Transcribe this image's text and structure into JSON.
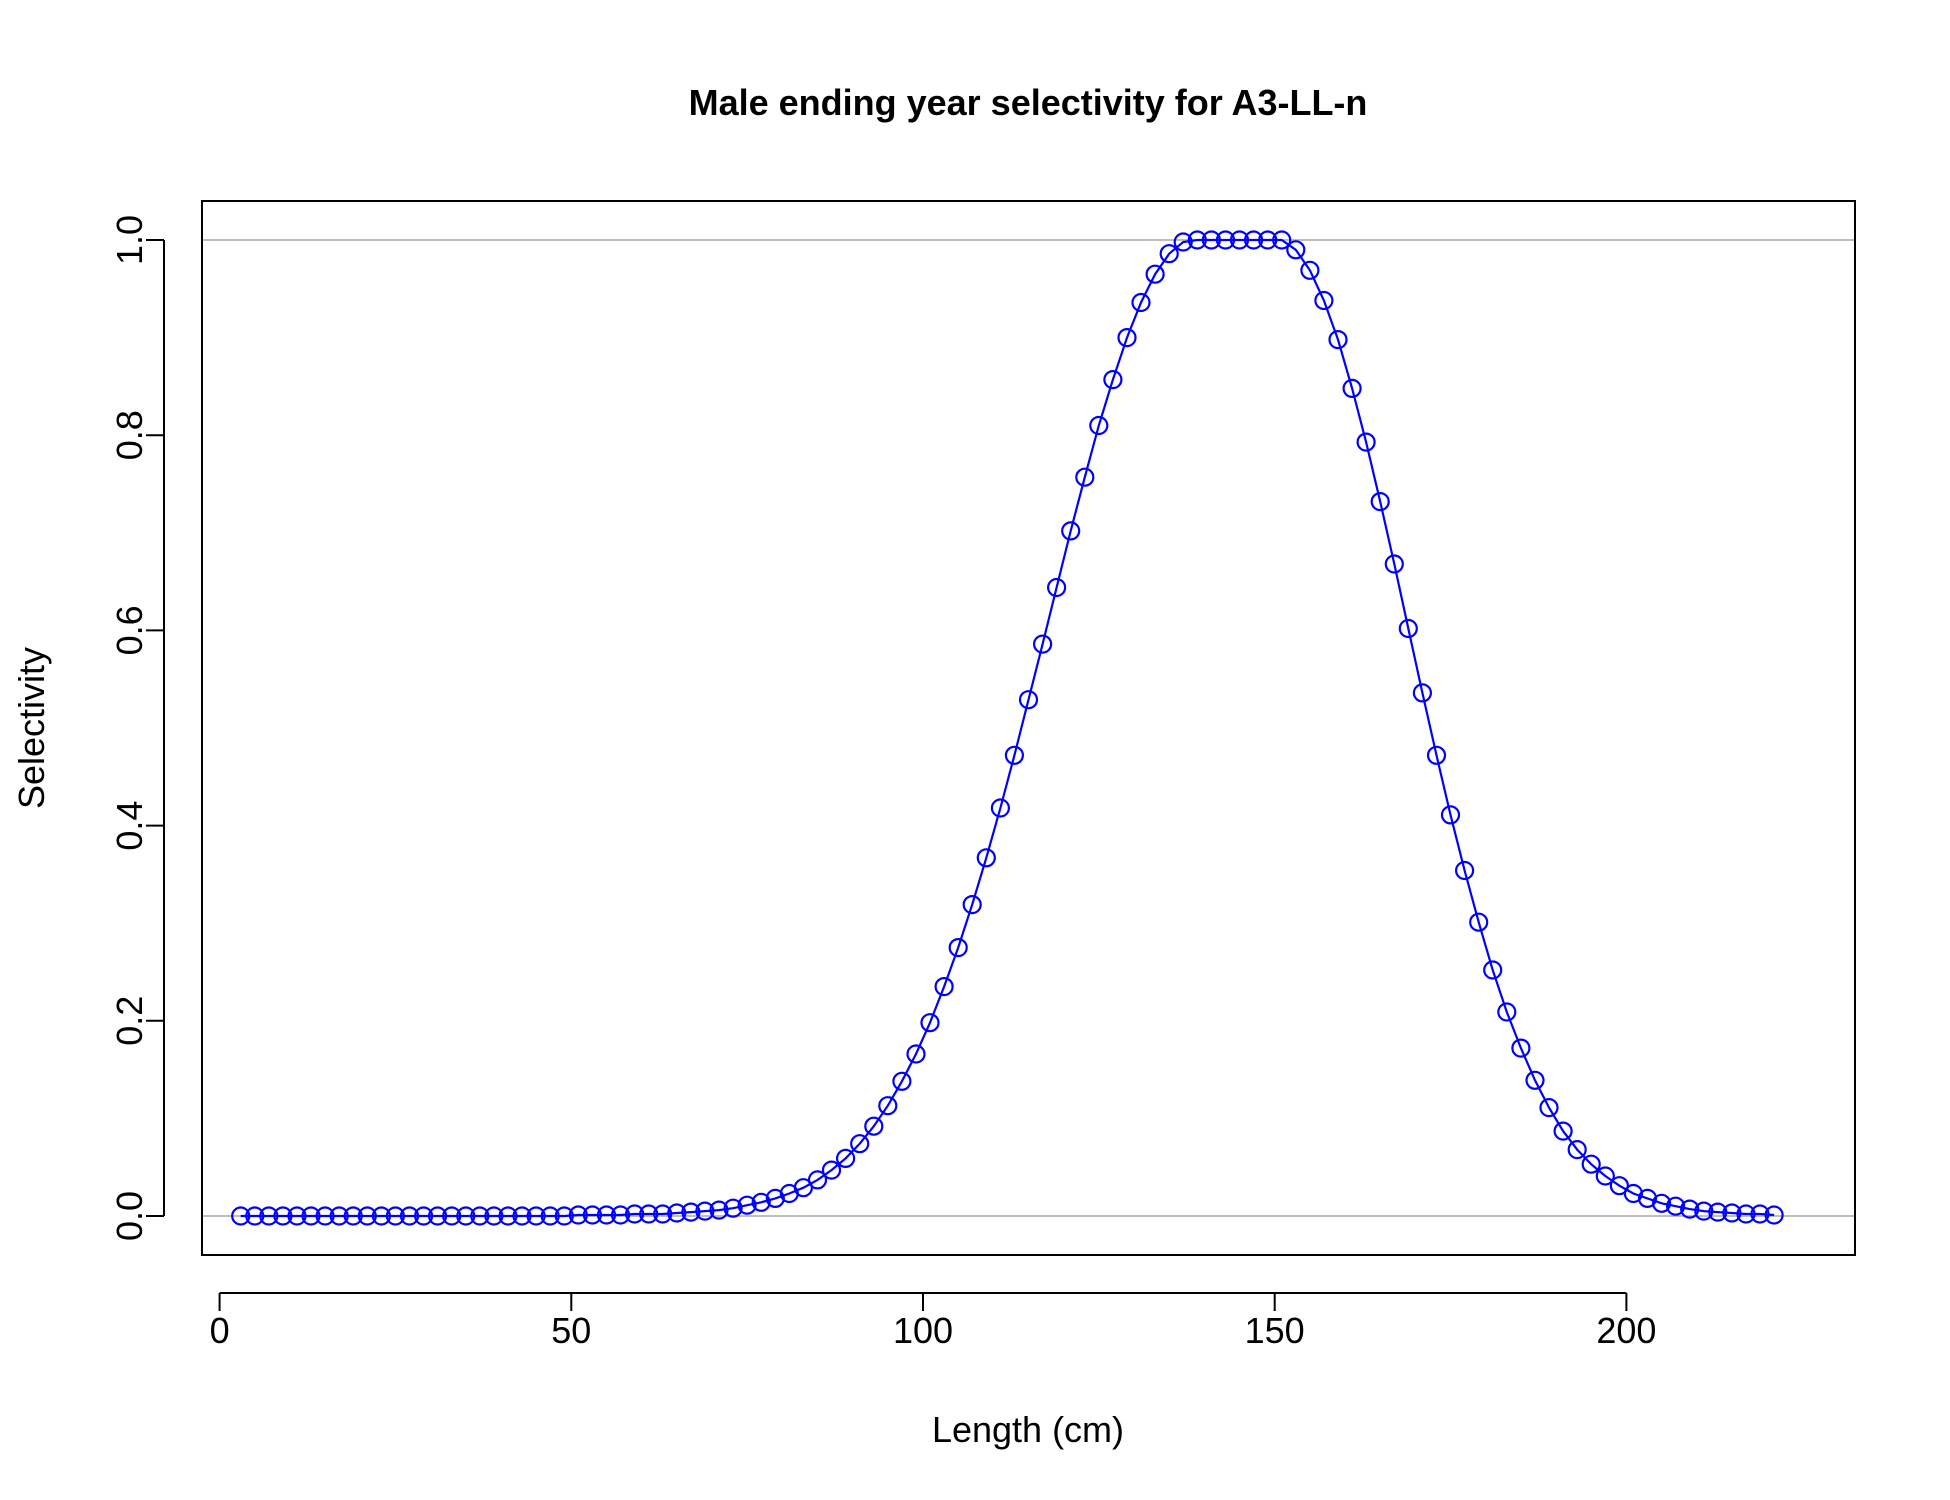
{
  "chart_data": {
    "type": "line",
    "title": "Male ending year selectivity for A3-LL-n",
    "xlabel": "Length (cm)",
    "ylabel": "Selectivity",
    "xlim": [
      -2.5,
      232.5
    ],
    "ylim": [
      -0.04,
      1.04
    ],
    "x_ticks": [
      "0",
      "50",
      "100",
      "150",
      "200"
    ],
    "y_ticks": [
      "0.0",
      "0.2",
      "0.4",
      "0.6",
      "0.8",
      "1.0"
    ],
    "reference_lines": [
      0,
      1
    ],
    "reference_line_color": "#bebebe",
    "series_color": "#0000ff",
    "marker": "open-circle",
    "grid": false,
    "series": [
      {
        "x": [
          3,
          5,
          7,
          9,
          11,
          13,
          15,
          17,
          19,
          21,
          23,
          25,
          27,
          29,
          31,
          33,
          35,
          37,
          39,
          41,
          43,
          45,
          47,
          49,
          51,
          53,
          55,
          57,
          59,
          61,
          63,
          65,
          67,
          69,
          71,
          73,
          75,
          77,
          79,
          81,
          83,
          85,
          87,
          89,
          91,
          93,
          95,
          97,
          99,
          101,
          103,
          105,
          107,
          109,
          111,
          113,
          115,
          117,
          119,
          121,
          123,
          125,
          127,
          129,
          131,
          133,
          135,
          137,
          139,
          141,
          143,
          145,
          147,
          149,
          151,
          153,
          155,
          157,
          159,
          161,
          163,
          165,
          167,
          169,
          171,
          173,
          175,
          177,
          179,
          181,
          183,
          185,
          187,
          189,
          191,
          193,
          195,
          197,
          199,
          201,
          203,
          205,
          207,
          209,
          211,
          213,
          215,
          217,
          219,
          221
        ],
        "values": [
          0,
          0,
          0,
          0,
          0,
          0,
          0,
          0,
          0,
          0,
          0,
          0,
          0,
          0,
          0,
          0,
          0,
          0,
          0,
          0,
          0,
          0,
          0,
          0,
          0.001,
          0.001,
          0.001,
          0.001,
          0.002,
          0.002,
          0.002,
          0.003,
          0.004,
          0.005,
          0.006,
          0.008,
          0.011,
          0.014,
          0.018,
          0.023,
          0.029,
          0.037,
          0.047,
          0.059,
          0.074,
          0.092,
          0.113,
          0.138,
          0.166,
          0.198,
          0.235,
          0.275,
          0.319,
          0.367,
          0.418,
          0.472,
          0.529,
          0.586,
          0.644,
          0.702,
          0.757,
          0.81,
          0.857,
          0.9,
          0.936,
          0.965,
          0.986,
          0.998,
          1.0,
          1.0,
          1.0,
          1.0,
          1.0,
          1.0,
          1.0,
          0.99,
          0.969,
          0.938,
          0.898,
          0.848,
          0.793,
          0.732,
          0.668,
          0.602,
          0.536,
          0.472,
          0.411,
          0.354,
          0.301,
          0.252,
          0.209,
          0.172,
          0.139,
          0.111,
          0.087,
          0.068,
          0.053,
          0.041,
          0.031,
          0.023,
          0.018,
          0.013,
          0.01,
          0.007,
          0.005,
          0.004,
          0.003,
          0.002,
          0.002,
          0.001
        ]
      }
    ]
  }
}
